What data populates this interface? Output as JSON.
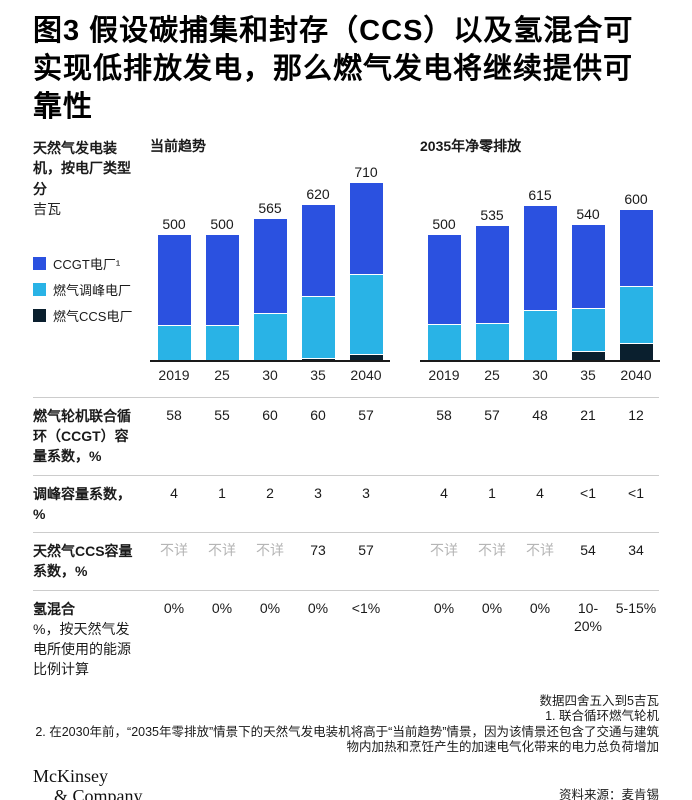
{
  "title": "图3 假设碳捕集和封存（CCS）以及氢混合可实现低排放发电，那么燃气发电将继续提供可靠性",
  "axis_note": {
    "label": "天然气发电装机，按电厂类型分",
    "unit": "吉瓦"
  },
  "legend": [
    {
      "name": "ccgt",
      "label": "CCGT电厂¹",
      "color": "#2b51e0"
    },
    {
      "name": "peaker",
      "label": "燃气调峰电厂",
      "color": "#29b3e6"
    },
    {
      "name": "ccs",
      "label": "燃气CCS电厂",
      "color": "#0a1f2e"
    }
  ],
  "chart_data": {
    "type": "bar",
    "stacked": true,
    "ylabel": "天然气发电装机，按电厂类型分",
    "unit": "吉瓦 (GW)",
    "ylim": [
      0,
      710
    ],
    "categories": [
      "2019",
      "25",
      "30",
      "35",
      "2040"
    ],
    "panels": [
      {
        "title": "当前趋势",
        "totals": [
          500,
          500,
          565,
          620,
          710
        ],
        "series": [
          {
            "name": "CCGT电厂",
            "color": "#2b51e0",
            "values": [
              360,
              360,
              375,
              365,
              365
            ]
          },
          {
            "name": "燃气调峰电厂",
            "color": "#29b3e6",
            "values": [
              140,
              140,
              190,
              245,
              320
            ]
          },
          {
            "name": "燃气CCS电厂",
            "color": "#0a1f2e",
            "values": [
              0,
              0,
              0,
              10,
              25
            ]
          }
        ]
      },
      {
        "title": "2035年净零排放",
        "totals": [
          500,
          535,
          615,
          540,
          600
        ],
        "series": [
          {
            "name": "CCGT电厂",
            "color": "#2b51e0",
            "values": [
              355,
              385,
              415,
              330,
              305
            ]
          },
          {
            "name": "燃气调峰电厂",
            "color": "#29b3e6",
            "values": [
              145,
              150,
              200,
              175,
              225
            ]
          },
          {
            "name": "燃气CCS电厂",
            "color": "#0a1f2e",
            "values": [
              0,
              0,
              0,
              35,
              70
            ]
          }
        ]
      }
    ]
  },
  "table": {
    "na_text": "不详",
    "na_color": "#b5b5b5",
    "rows": [
      {
        "label": "燃气轮机联合循环（CCGT）容量系数，%",
        "sublabel": "",
        "left": [
          "58",
          "55",
          "60",
          "60",
          "57"
        ],
        "right": [
          "58",
          "57",
          "48",
          "21",
          "12"
        ]
      },
      {
        "label": "调峰容量系数，%",
        "sublabel": "",
        "left": [
          "4",
          "1",
          "2",
          "3",
          "3"
        ],
        "right": [
          "4",
          "1",
          "4",
          "<1",
          "<1"
        ]
      },
      {
        "label": "天然气CCS容量系数，%",
        "sublabel": "",
        "left": [
          "不详",
          "不详",
          "不详",
          "73",
          "57"
        ],
        "right": [
          "不详",
          "不详",
          "不详",
          "54",
          "34"
        ]
      },
      {
        "label": "氢混合",
        "sublabel": "%，按天然气发电所使用的能源比例计算",
        "left": [
          "0%",
          "0%",
          "0%",
          "0%",
          "<1%"
        ],
        "right": [
          "0%",
          "0%",
          "0%",
          "10-20%",
          "5-15%"
        ]
      }
    ]
  },
  "footnotes": [
    "数据四舍五入到5吉瓦",
    "1. 联合循环燃气轮机",
    "2. 在2030年前，“2035年零排放”情景下的天然气发电装机将高于“当前趋势”情景，因为该情景还包含了交通与建筑物内加热和烹饪产生的加速电气化带来的电力总负荷增加"
  ],
  "logo": {
    "line1": "McKinsey",
    "line2": "& Company"
  },
  "source": "资料来源：麦肯锡"
}
